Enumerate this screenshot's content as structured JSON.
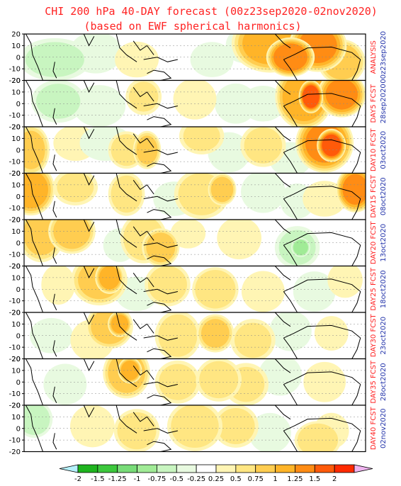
{
  "chart_data": {
    "type": "heatmap",
    "title": "CHI 200 hPa 40-DAY forecast (00z23sep2020-02nov2020)",
    "subtitle": "(based on EWF spherical harmonics)",
    "y_ticks": [
      "20",
      "10",
      "0",
      "-10",
      "-20"
    ],
    "ylim": [
      -20,
      20
    ],
    "panels": [
      {
        "label1": "ANALYSIS",
        "label2": "00z23sep2020",
        "blobs": [
          [
            0.72,
            0.2,
            0.08,
            0.45,
            1.1
          ],
          [
            0.78,
            0.5,
            0.05,
            0.3,
            1.4
          ],
          [
            0.86,
            0.25,
            0.06,
            0.4,
            1.3
          ],
          [
            0.93,
            0.6,
            0.05,
            0.35,
            0.9
          ],
          [
            0.09,
            0.55,
            0.08,
            0.35,
            -0.5
          ],
          [
            0.21,
            0.4,
            0.06,
            0.35,
            -0.4
          ],
          [
            0.33,
            0.55,
            0.05,
            0.3,
            0.4
          ],
          [
            0.55,
            0.55,
            0.05,
            0.3,
            -0.35
          ],
          [
            0.64,
            0.25,
            0.04,
            0.3,
            -0.3
          ]
        ]
      },
      {
        "label1": "DAY5 FCST",
        "label2": "28sep2020",
        "blobs": [
          [
            0.82,
            0.35,
            0.06,
            0.5,
            1.2
          ],
          [
            0.84,
            0.35,
            0.025,
            0.25,
            1.7
          ],
          [
            0.93,
            0.3,
            0.05,
            0.35,
            1.3
          ],
          [
            0.1,
            0.45,
            0.06,
            0.35,
            -0.5
          ],
          [
            0.22,
            0.55,
            0.06,
            0.35,
            -0.4
          ],
          [
            0.35,
            0.35,
            0.04,
            0.3,
            0.5
          ],
          [
            0.5,
            0.4,
            0.05,
            0.35,
            0.35
          ],
          [
            0.62,
            0.5,
            0.05,
            0.35,
            -0.3
          ],
          [
            0.7,
            0.5,
            0.05,
            0.3,
            -0.4
          ]
        ]
      },
      {
        "label1": "DAY10 FCST",
        "label2": "03oct2020",
        "blobs": [
          [
            0.88,
            0.35,
            0.06,
            0.45,
            1.3
          ],
          [
            0.9,
            0.4,
            0.03,
            0.25,
            1.6
          ],
          [
            0.02,
            0.5,
            0.04,
            0.4,
            0.8
          ],
          [
            0.15,
            0.35,
            0.05,
            0.3,
            0.4
          ],
          [
            0.3,
            0.5,
            0.04,
            0.3,
            0.6
          ],
          [
            0.36,
            0.5,
            0.03,
            0.3,
            0.8
          ],
          [
            0.52,
            0.2,
            0.05,
            0.3,
            0.5
          ],
          [
            0.7,
            0.4,
            0.05,
            0.35,
            0.55
          ],
          [
            0.24,
            0.35,
            0.06,
            0.3,
            -0.4
          ],
          [
            0.6,
            0.55,
            0.05,
            0.35,
            -0.3
          ],
          [
            0.78,
            0.7,
            0.05,
            0.3,
            -0.3
          ]
        ]
      },
      {
        "label1": "DAY15 FCST",
        "label2": "08oct2020",
        "blobs": [
          [
            0.02,
            0.35,
            0.05,
            0.4,
            1.1
          ],
          [
            0.15,
            0.3,
            0.05,
            0.3,
            0.5
          ],
          [
            0.3,
            0.45,
            0.04,
            0.35,
            0.6
          ],
          [
            0.52,
            0.45,
            0.06,
            0.4,
            0.6
          ],
          [
            0.58,
            0.35,
            0.03,
            0.25,
            0.9
          ],
          [
            0.97,
            0.35,
            0.04,
            0.35,
            1.3
          ],
          [
            0.88,
            0.55,
            0.05,
            0.3,
            0.4
          ],
          [
            0.44,
            0.55,
            0.05,
            0.3,
            -0.3
          ],
          [
            0.7,
            0.4,
            0.05,
            0.35,
            -0.45
          ],
          [
            0.8,
            0.6,
            0.04,
            0.3,
            -0.35
          ]
        ]
      },
      {
        "label1": "DAY20 FCST",
        "label2": "13oct2020",
        "blobs": [
          [
            0.05,
            0.3,
            0.05,
            0.45,
            0.8
          ],
          [
            0.14,
            0.25,
            0.05,
            0.35,
            0.9
          ],
          [
            0.35,
            0.4,
            0.05,
            0.4,
            0.7
          ],
          [
            0.4,
            0.6,
            0.04,
            0.3,
            0.85
          ],
          [
            0.63,
            0.4,
            0.05,
            0.35,
            0.45
          ],
          [
            0.48,
            0.3,
            0.04,
            0.25,
            0.4
          ],
          [
            0.8,
            0.6,
            0.05,
            0.35,
            -0.5
          ],
          [
            0.81,
            0.6,
            0.02,
            0.15,
            -0.9
          ],
          [
            0.28,
            0.55,
            0.04,
            0.3,
            -0.25
          ]
        ]
      },
      {
        "label1": "DAY25 FCST",
        "label2": "18oct2020",
        "blobs": [
          [
            0.22,
            0.3,
            0.06,
            0.4,
            0.8
          ],
          [
            0.25,
            0.25,
            0.03,
            0.25,
            1.1
          ],
          [
            0.42,
            0.4,
            0.05,
            0.35,
            0.6
          ],
          [
            0.56,
            0.5,
            0.05,
            0.35,
            0.7
          ],
          [
            0.7,
            0.55,
            0.05,
            0.35,
            0.35
          ],
          [
            0.1,
            0.4,
            0.04,
            0.35,
            0.3
          ],
          [
            0.94,
            0.3,
            0.04,
            0.3,
            0.4
          ],
          [
            0.33,
            0.6,
            0.05,
            0.3,
            -0.3
          ],
          [
            0.85,
            0.55,
            0.05,
            0.35,
            -0.3
          ]
        ]
      },
      {
        "label1": "DAY30 FCST",
        "label2": "23oct2020",
        "blobs": [
          [
            0.25,
            0.3,
            0.05,
            0.35,
            0.9
          ],
          [
            0.28,
            0.25,
            0.025,
            0.2,
            1.1
          ],
          [
            0.45,
            0.5,
            0.05,
            0.4,
            0.6
          ],
          [
            0.56,
            0.45,
            0.04,
            0.3,
            0.8
          ],
          [
            0.67,
            0.6,
            0.05,
            0.35,
            0.5
          ],
          [
            0.2,
            0.6,
            0.05,
            0.35,
            0.4
          ],
          [
            0.08,
            0.5,
            0.05,
            0.3,
            -0.35
          ],
          [
            0.78,
            0.4,
            0.05,
            0.35,
            -0.3
          ],
          [
            0.9,
            0.45,
            0.04,
            0.3,
            0.3
          ]
        ]
      },
      {
        "label1": "DAY35 FCST",
        "label2": "28oct2020",
        "blobs": [
          [
            0.3,
            0.3,
            0.05,
            0.4,
            0.9
          ],
          [
            0.31,
            0.25,
            0.025,
            0.2,
            1.2
          ],
          [
            0.45,
            0.5,
            0.05,
            0.35,
            0.55
          ],
          [
            0.57,
            0.45,
            0.05,
            0.35,
            0.6
          ],
          [
            0.65,
            0.55,
            0.05,
            0.35,
            0.5
          ],
          [
            0.12,
            0.55,
            0.05,
            0.35,
            -0.35
          ],
          [
            0.75,
            0.35,
            0.05,
            0.35,
            -0.35
          ],
          [
            0.88,
            0.5,
            0.05,
            0.35,
            0.3
          ]
        ]
      },
      {
        "label1": "DAY40 FCST",
        "label2": "02nov2020",
        "blobs": [
          [
            0.03,
            0.3,
            0.04,
            0.3,
            -0.6
          ],
          [
            0.2,
            0.45,
            0.05,
            0.35,
            0.45
          ],
          [
            0.33,
            0.55,
            0.05,
            0.35,
            0.6
          ],
          [
            0.5,
            0.45,
            0.06,
            0.4,
            0.65
          ],
          [
            0.62,
            0.45,
            0.05,
            0.35,
            0.55
          ],
          [
            0.86,
            0.75,
            0.05,
            0.3,
            0.7
          ],
          [
            0.9,
            0.55,
            0.04,
            0.3,
            0.4
          ],
          [
            0.72,
            0.6,
            0.05,
            0.35,
            -0.3
          ]
        ]
      }
    ],
    "colorbar": {
      "labels": [
        "-2",
        "-1.5",
        "-1.25",
        "-1",
        "-0.75",
        "-0.5",
        "-0.25",
        "0.25",
        "0.5",
        "0.75",
        "1",
        "1.25",
        "1.5",
        "2"
      ],
      "colors": [
        "#1eb41e",
        "#3cc83c",
        "#78dc78",
        "#a0eb96",
        "#c8f5c0",
        "#e8fae0",
        "#ffffff",
        "#fff5b4",
        "#ffe682",
        "#ffcd50",
        "#ffb428",
        "#ff8c14",
        "#ff5a0a",
        "#ff2a00"
      ],
      "under_color": "#b4f0fa",
      "over_color": "#f0b4f0"
    }
  }
}
